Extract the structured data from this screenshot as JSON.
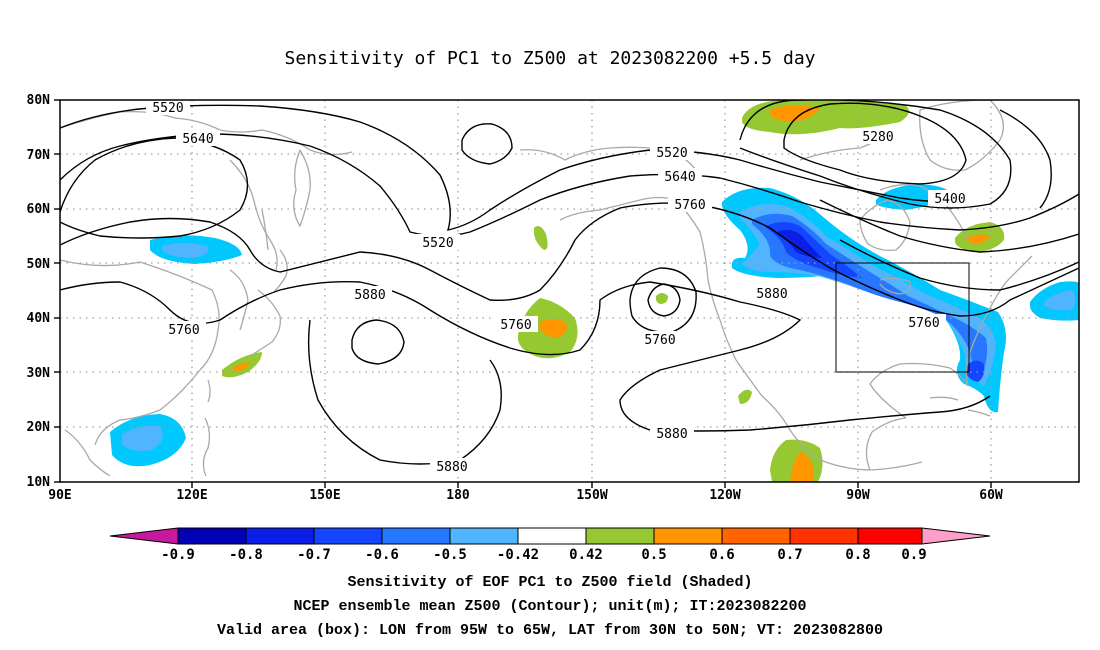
{
  "title": "Sensitivity of PC1 to Z500 at 2023082200 +5.5 day",
  "map": {
    "lon_labels": [
      "90E",
      "120E",
      "150E",
      "180",
      "150W",
      "120W",
      "90W",
      "60W"
    ],
    "lat_labels": [
      "80N",
      "70N",
      "60N",
      "50N",
      "40N",
      "30N",
      "20N",
      "10N"
    ],
    "contour_labels": [
      "5520",
      "5640",
      "5520",
      "5520",
      "5640",
      "5760",
      "5280",
      "5400",
      "5880",
      "5760",
      "5760",
      "5760",
      "5880",
      "5760",
      "5880",
      "5880"
    ],
    "colors": {
      "neg_09": "#0000b4",
      "neg_08": "#0a1ee6",
      "neg_07": "#1446ff",
      "neg_06": "#2878ff",
      "neg_05": "#50b4ff",
      "neg_042": "#00c8ff",
      "neutral": "#ffffff",
      "pos_042": "#96c832",
      "pos_05": "#ff9600",
      "pos_06": "#ff6400",
      "pos_07": "#ff3200",
      "pos_08": "#ff0000",
      "low_tri": "#c8189c",
      "high_tri": "#ff9ec8",
      "coast": "#a8a8a8",
      "grid": "#a0a0a0"
    }
  },
  "colorbar": {
    "labels": [
      "-0.9",
      "-0.8",
      "-0.7",
      "-0.6",
      "-0.5",
      "-0.42",
      "0.42",
      "0.5",
      "0.6",
      "0.7",
      "0.8",
      "0.9"
    ]
  },
  "captions": [
    "Sensitivity of EOF PC1 to Z500 field (Shaded)",
    "NCEP ensemble mean Z500 (Contour); unit(m); IT:2023082200",
    "Valid area (box): LON from 95W to 65W, LAT from 30N to 50N; VT: 2023082800"
  ]
}
